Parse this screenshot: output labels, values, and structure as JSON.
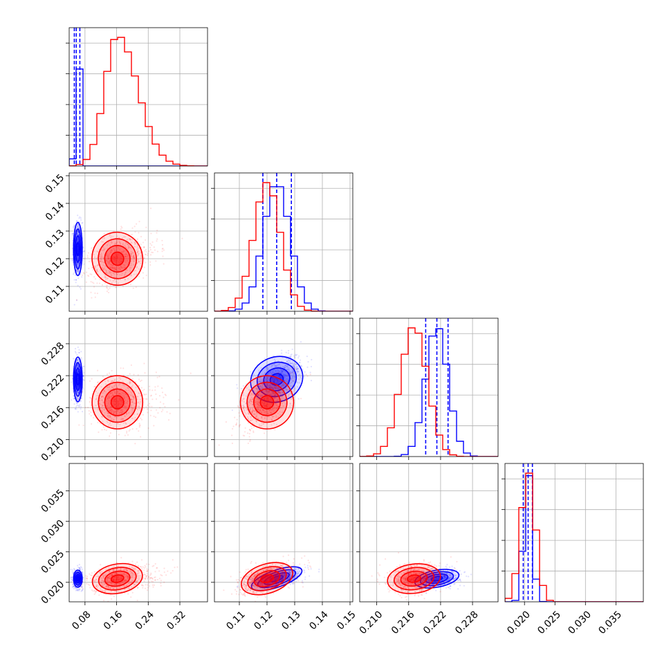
{
  "colors": {
    "series_a": "#0000ff",
    "series_b": "#ff0000",
    "grid": "#b0b0b0",
    "frame": "#000000"
  },
  "chart_data": {
    "type": "corner",
    "title": "",
    "grid": true,
    "parameters": [
      {
        "range": [
          0.04,
          0.39
        ],
        "ticks": [
          "0.08",
          "0.16",
          "0.24",
          "0.32"
        ]
      },
      {
        "range": [
          0.101,
          0.151
        ],
        "ticks": [
          "0.11",
          "0.12",
          "0.13",
          "0.14",
          "0.15"
        ]
      },
      {
        "range": [
          0.2068,
          0.2328
        ],
        "ticks": [
          "0.210",
          "0.216",
          "0.222",
          "0.228"
        ]
      },
      {
        "range": [
          0.0168,
          0.0395
        ],
        "ticks": [
          "0.020",
          "0.025",
          "0.030",
          "0.035"
        ]
      }
    ],
    "series": [
      {
        "color": "#0000ff",
        "means": [
          0.062,
          0.1235,
          0.2213,
          0.0206
        ],
        "sigmas": [
          0.0055,
          0.0048,
          0.0021,
          0.0007
        ],
        "quantiles": [
          [
            0.053,
            0.058,
            0.067
          ],
          [
            0.1185,
            0.1235,
            0.1288
          ],
          [
            0.2192,
            0.2213,
            0.2234
          ],
          [
            0.0198,
            0.0206,
            0.0213
          ]
        ],
        "correlations": [
          [
            1,
            0,
            0,
            0
          ],
          [
            0,
            1,
            0.6,
            0.55
          ],
          [
            0,
            0.6,
            1,
            0.3
          ],
          [
            0,
            0.55,
            0.3,
            1
          ]
        ]
      },
      {
        "color": "#ff0000",
        "means": [
          0.162,
          0.12,
          0.217,
          0.0206
        ],
        "sigmas": [
          0.032,
          0.0048,
          0.0025,
          0.0012
        ],
        "quantiles": [],
        "correlations": [
          [
            1,
            0.35,
            0,
            0.3
          ],
          [
            0.35,
            1,
            0.55,
            0.5
          ],
          [
            0,
            0.55,
            1,
            0.2
          ],
          [
            0.3,
            0.5,
            0.2,
            1
          ]
        ]
      }
    ]
  }
}
